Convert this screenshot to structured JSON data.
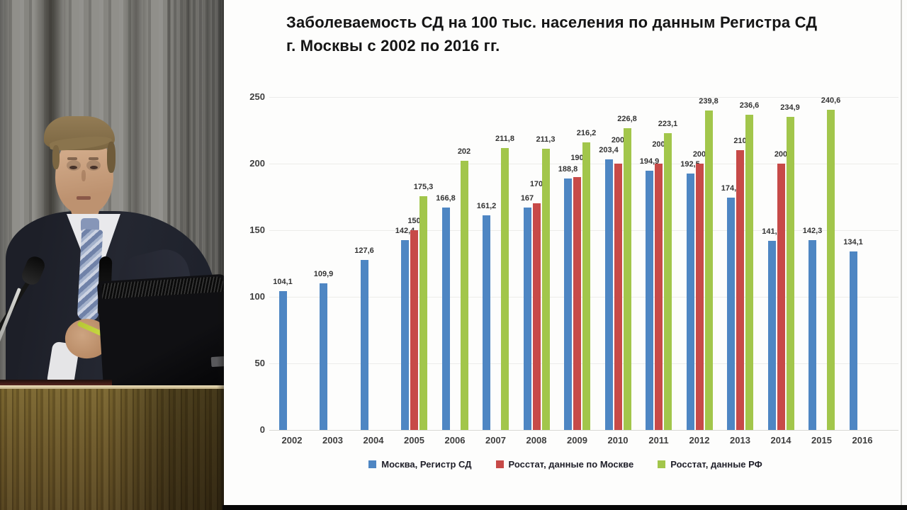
{
  "slide": {
    "title_line1": "Заболеваемость СД на 100 тыс. населения по данным Регистра СД",
    "title_line2": "г. Москвы с 2002 по 2016 гг."
  },
  "chart_data": {
    "type": "bar",
    "title": "Заболеваемость СД на 100 тыс. населения по данным Регистра СД г. Москвы с 2002 по 2016 гг.",
    "categories": [
      "2002",
      "2003",
      "2004",
      "2005",
      "2006",
      "2007",
      "2008",
      "2009",
      "2010",
      "2011",
      "2012",
      "2013",
      "2014",
      "2015",
      "2016"
    ],
    "series": [
      {
        "name": "Москва, Регистр СД",
        "color": "#4e86c3",
        "values": [
          104.1,
          109.9,
          127.6,
          142.4,
          166.8,
          161.2,
          167,
          188.8,
          203.4,
          194.9,
          192.5,
          174.5,
          141.9,
          142.3,
          134.1
        ]
      },
      {
        "name": "Росстат, данные по Москве",
        "color": "#c74a48",
        "values": [
          null,
          null,
          null,
          150,
          null,
          null,
          170,
          190,
          200,
          200,
          200,
          210,
          200,
          null,
          null
        ]
      },
      {
        "name": "Росстат, данные РФ",
        "color": "#a2c64b",
        "values": [
          null,
          null,
          null,
          175.3,
          202,
          211.8,
          211.3,
          216.2,
          226.8,
          223.1,
          239.8,
          236.6,
          234.9,
          240.6,
          null
        ]
      }
    ],
    "xlabel": "",
    "ylabel": "",
    "ylim": [
      0,
      250
    ],
    "yticks": [
      0,
      50,
      100,
      150,
      200,
      250
    ],
    "grid": "horizontal-light",
    "legend_position": "bottom",
    "data_labels": true,
    "decimal_separator": ","
  },
  "scene": {
    "colors": {
      "curtain": "#8a8984",
      "suit": "#242731",
      "shirt": "#e9e9ec",
      "tie_light": "#ccd3e2",
      "tie_dark": "#7082a8",
      "skin": "#c89e7d",
      "hair": "#87714c",
      "podium_wood": "#6a5628",
      "monitor": "#0b0b0d",
      "pointer_pen": "#c9dc42"
    }
  }
}
